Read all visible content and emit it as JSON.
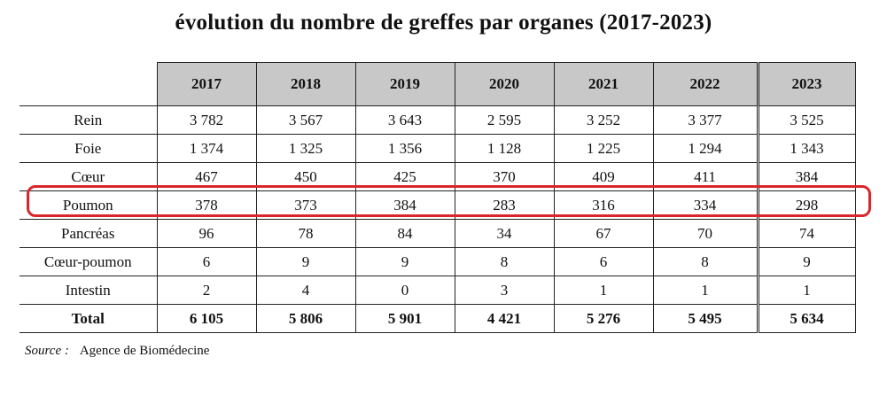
{
  "title": "évolution du nombre de greffes par organes (2017-2023)",
  "table": {
    "years": [
      "2017",
      "2018",
      "2019",
      "2020",
      "2021",
      "2022",
      "2023"
    ],
    "rows": [
      {
        "label": "Rein",
        "values": [
          "3 782",
          "3 567",
          "3 643",
          "2 595",
          "3 252",
          "3 377",
          "3 525"
        ]
      },
      {
        "label": "Foie",
        "values": [
          "1 374",
          "1 325",
          "1 356",
          "1 128",
          "1 225",
          "1 294",
          "1 343"
        ]
      },
      {
        "label": "Cœur",
        "values": [
          "467",
          "450",
          "425",
          "370",
          "409",
          "411",
          "384"
        ]
      },
      {
        "label": "Poumon",
        "values": [
          "378",
          "373",
          "384",
          "283",
          "316",
          "334",
          "298"
        ]
      },
      {
        "label": "Pancréas",
        "values": [
          "96",
          "78",
          "84",
          "34",
          "67",
          "70",
          "74"
        ]
      },
      {
        "label": "Cœur-poumon",
        "values": [
          "6",
          "9",
          "9",
          "8",
          "6",
          "8",
          "9"
        ]
      },
      {
        "label": "Intestin",
        "values": [
          "2",
          "4",
          "0",
          "3",
          "1",
          "1",
          "1"
        ]
      }
    ],
    "total": {
      "label": "Total",
      "values": [
        "6 105",
        "5 806",
        "5 901",
        "4 421",
        "5 276",
        "5 495",
        "5 634"
      ]
    }
  },
  "source": {
    "key": "Source :",
    "value": "Agence de Biomédecine"
  },
  "highlight_color": "#d8262b"
}
